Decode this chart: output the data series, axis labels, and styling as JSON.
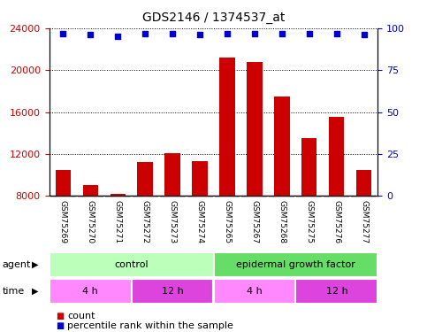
{
  "title": "GDS2146 / 1374537_at",
  "samples": [
    "GSM75269",
    "GSM75270",
    "GSM75271",
    "GSM75272",
    "GSM75273",
    "GSM75274",
    "GSM75265",
    "GSM75267",
    "GSM75268",
    "GSM75275",
    "GSM75276",
    "GSM75277"
  ],
  "bar_values": [
    10500,
    9000,
    8200,
    11200,
    12100,
    11300,
    21200,
    20800,
    17500,
    13500,
    15500,
    10500
  ],
  "percentile_values": [
    97,
    96,
    95,
    97,
    97,
    96,
    97,
    97,
    97,
    97,
    97,
    96
  ],
  "bar_color": "#cc0000",
  "dot_color": "#0000cc",
  "ylim_left": [
    8000,
    24000
  ],
  "ylim_right": [
    0,
    100
  ],
  "yticks_left": [
    8000,
    12000,
    16000,
    20000,
    24000
  ],
  "yticks_right": [
    0,
    25,
    50,
    75,
    100
  ],
  "agent_groups": [
    {
      "label": "control",
      "start": 0,
      "end": 6,
      "color": "#bbffbb"
    },
    {
      "label": "epidermal growth factor",
      "start": 6,
      "end": 12,
      "color": "#66dd66"
    }
  ],
  "time_groups": [
    {
      "label": "4 h",
      "start": 0,
      "end": 3,
      "color": "#ff88ff"
    },
    {
      "label": "12 h",
      "start": 3,
      "end": 6,
      "color": "#dd44dd"
    },
    {
      "label": "4 h",
      "start": 6,
      "end": 9,
      "color": "#ff88ff"
    },
    {
      "label": "12 h",
      "start": 9,
      "end": 12,
      "color": "#dd44dd"
    }
  ],
  "xlabel_color": "#cc0000",
  "ylabel_right_color": "#0000cc",
  "bar_width": 0.55,
  "background_color": "#ffffff",
  "title_fontsize": 10
}
